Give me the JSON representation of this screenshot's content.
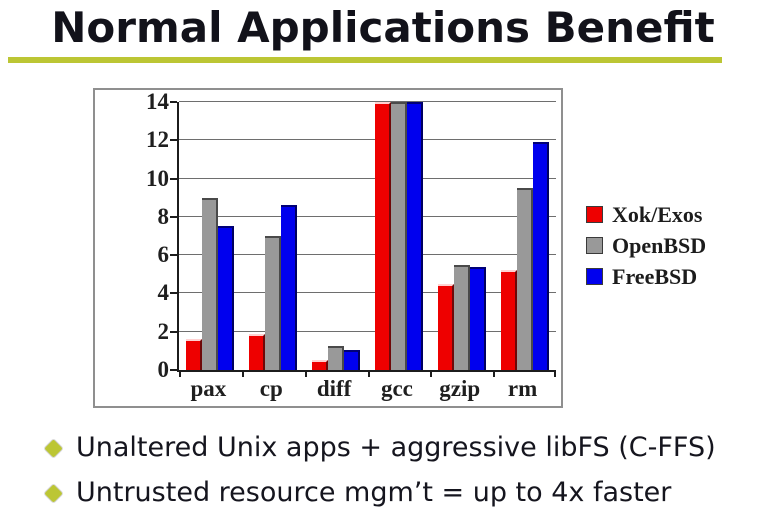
{
  "slide": {
    "title": "Normal Applications Benefit",
    "bullets": [
      "Unaltered Unix apps + aggressive libFS (C-FFS)",
      "Untrusted resource mgm’t = up to 4x faster"
    ]
  },
  "colors": {
    "accent_olive": "#bcc634",
    "title_text": "#12121a",
    "axis_black": "#1c1c1c",
    "gridline_gray": "#6e6e6e",
    "frame_border_gray": "#8f8f8f",
    "series_red": "#ee0000",
    "series_gray": "#999999",
    "series_blue": "#0000ee"
  },
  "chart_data": {
    "type": "bar",
    "title": "",
    "xlabel": "",
    "ylabel": "",
    "categories": [
      "pax",
      "cp",
      "diff",
      "gcc",
      "gzip",
      "rm"
    ],
    "series": [
      {
        "name": "Xok/Exos",
        "color": "#ee0000",
        "values": [
          1.6,
          1.9,
          0.5,
          14,
          4.5,
          5.2
        ]
      },
      {
        "name": "OpenBSD",
        "color": "#999999",
        "values": [
          9.0,
          7.0,
          1.25,
          14,
          5.5,
          9.5
        ]
      },
      {
        "name": "FreeBSD",
        "color": "#0000ee",
        "values": [
          7.5,
          8.6,
          1.05,
          14,
          5.4,
          11.9
        ]
      }
    ],
    "ylim": [
      0,
      14
    ],
    "yticks": [
      0,
      2,
      4,
      6,
      8,
      10,
      12,
      14
    ],
    "grid": true,
    "legend_position": "right"
  }
}
